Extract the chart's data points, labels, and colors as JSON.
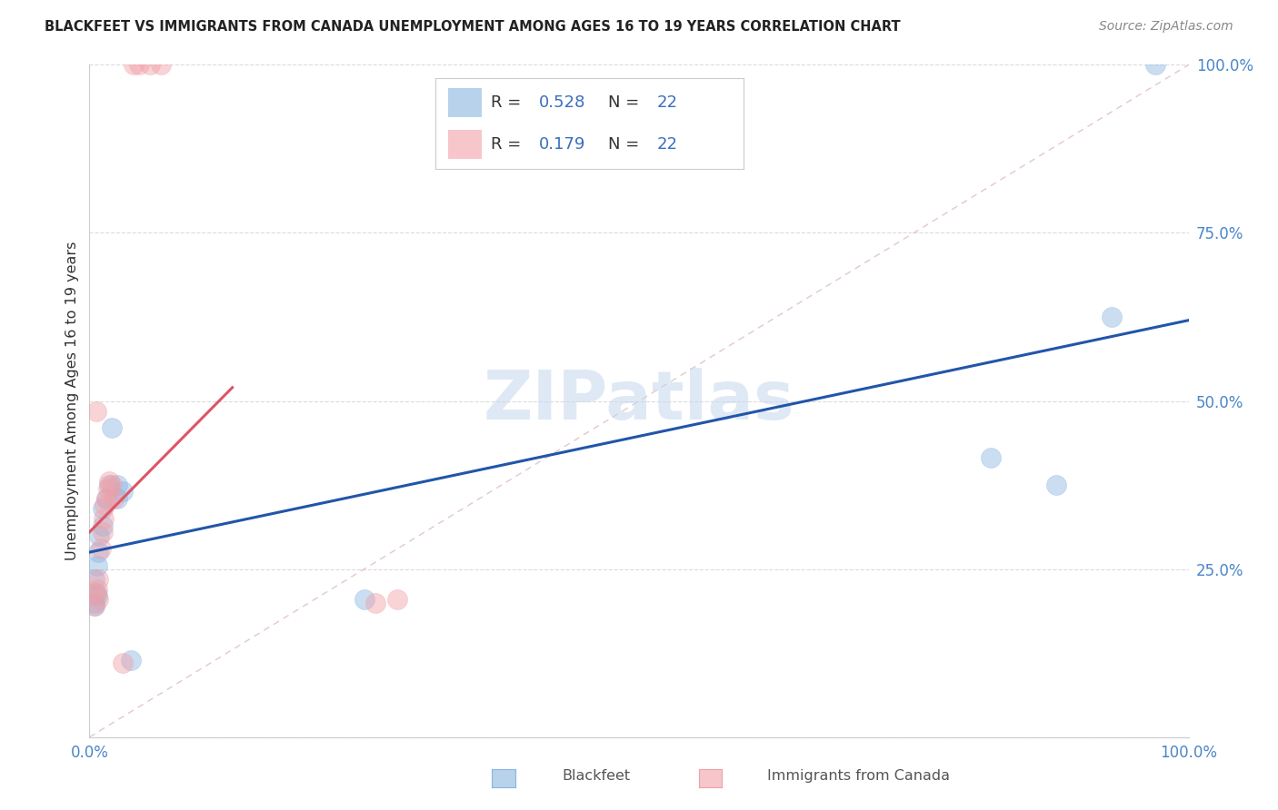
{
  "title": "BLACKFEET VS IMMIGRANTS FROM CANADA UNEMPLOYMENT AMONG AGES 16 TO 19 YEARS CORRELATION CHART",
  "source": "Source: ZipAtlas.com",
  "ylabel": "Unemployment Among Ages 16 to 19 years",
  "xlim": [
    0.0,
    1.0
  ],
  "ylim": [
    0.0,
    1.0
  ],
  "xticks": [
    0.0,
    0.2,
    0.4,
    0.6,
    0.8,
    1.0
  ],
  "yticks": [
    0.0,
    0.25,
    0.5,
    0.75,
    1.0
  ],
  "xtick_labels": [
    "0.0%",
    "",
    "",
    "",
    "",
    "100.0%"
  ],
  "ytick_labels": [
    "",
    "25.0%",
    "50.0%",
    "75.0%",
    "100.0%"
  ],
  "watermark": "ZIPatlas",
  "blackfeet_color": "#8ab4e0",
  "immigrants_color": "#f0a0a8",
  "blue_line_color": "#2255aa",
  "pink_line_color": "#dd5566",
  "diagonal_line_color": "#ddbbbb",
  "grid_color": "#cccccc",
  "blackfeet_points": [
    [
      0.005,
      0.2
    ],
    [
      0.005,
      0.235
    ],
    [
      0.007,
      0.255
    ],
    [
      0.008,
      0.275
    ],
    [
      0.009,
      0.3
    ],
    [
      0.012,
      0.315
    ],
    [
      0.012,
      0.34
    ],
    [
      0.015,
      0.355
    ],
    [
      0.018,
      0.375
    ],
    [
      0.02,
      0.46
    ],
    [
      0.025,
      0.355
    ],
    [
      0.025,
      0.375
    ],
    [
      0.03,
      0.365
    ],
    [
      0.005,
      0.195
    ],
    [
      0.006,
      0.215
    ],
    [
      0.007,
      0.21
    ],
    [
      0.038,
      0.115
    ],
    [
      0.25,
      0.205
    ],
    [
      0.82,
      0.415
    ],
    [
      0.88,
      0.375
    ],
    [
      0.93,
      0.625
    ],
    [
      0.97,
      1.0
    ]
  ],
  "immigrants_points": [
    [
      0.005,
      0.195
    ],
    [
      0.005,
      0.215
    ],
    [
      0.007,
      0.22
    ],
    [
      0.008,
      0.235
    ],
    [
      0.008,
      0.205
    ],
    [
      0.01,
      0.28
    ],
    [
      0.012,
      0.305
    ],
    [
      0.013,
      0.325
    ],
    [
      0.014,
      0.345
    ],
    [
      0.015,
      0.355
    ],
    [
      0.017,
      0.37
    ],
    [
      0.018,
      0.38
    ],
    [
      0.02,
      0.375
    ],
    [
      0.022,
      0.355
    ],
    [
      0.006,
      0.485
    ],
    [
      0.04,
      1.0
    ],
    [
      0.045,
      1.0
    ],
    [
      0.055,
      1.0
    ],
    [
      0.065,
      1.0
    ],
    [
      0.03,
      0.11
    ],
    [
      0.26,
      0.2
    ],
    [
      0.28,
      0.205
    ]
  ],
  "blue_line_x": [
    0.0,
    1.0
  ],
  "blue_line_y": [
    0.275,
    0.62
  ],
  "pink_line_x": [
    0.0,
    0.13
  ],
  "pink_line_y": [
    0.305,
    0.52
  ],
  "background_color": "#ffffff"
}
